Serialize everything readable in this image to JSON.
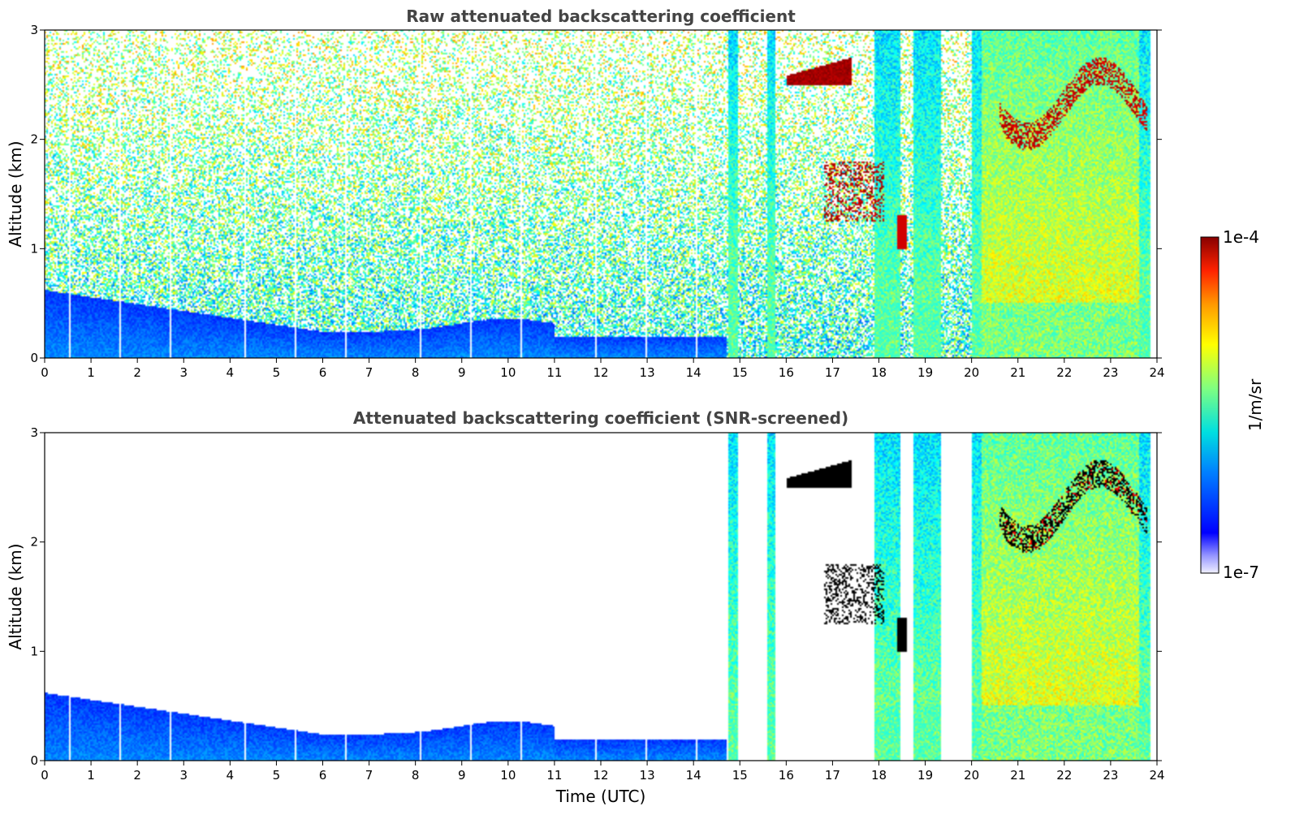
{
  "chart_data": [
    {
      "type": "heatmap",
      "title": "Raw attenuated backscattering coefficient",
      "xlabel": "",
      "ylabel": "Altitude (km)",
      "xlim": [
        0,
        24
      ],
      "ylim": [
        0,
        3
      ],
      "x_ticks": [
        "0",
        "1",
        "2",
        "3",
        "4",
        "5",
        "6",
        "7",
        "8",
        "9",
        "10",
        "11",
        "12",
        "13",
        "14",
        "15",
        "16",
        "17",
        "18",
        "19",
        "20",
        "21",
        "22",
        "23",
        "24"
      ],
      "y_ticks": [
        "0",
        "1",
        "2",
        "3"
      ],
      "screened": false,
      "features": [
        {
          "kind": "boundary-layer",
          "x": [
            0,
            14.7
          ],
          "top_km": [
            0.6,
            0.25
          ]
        },
        {
          "kind": "cloud",
          "x": [
            16.0,
            17.4
          ],
          "y_km": [
            2.55,
            2.75
          ]
        },
        {
          "kind": "cloud",
          "x": [
            16.7,
            18.0
          ],
          "y_km": [
            1.2,
            1.8
          ]
        },
        {
          "kind": "rain-column",
          "x": [
            14.8,
            15.7
          ]
        },
        {
          "kind": "rain-column",
          "x": [
            17.9,
            19.4
          ]
        },
        {
          "kind": "rain-column",
          "x": [
            20.0,
            23.8
          ]
        }
      ]
    },
    {
      "type": "heatmap",
      "title": "Attenuated backscattering coefficient (SNR-screened)",
      "xlabel": "Time (UTC)",
      "ylabel": "Altitude (km)",
      "xlim": [
        0,
        24
      ],
      "ylim": [
        0,
        3
      ],
      "x_ticks": [
        "0",
        "1",
        "2",
        "3",
        "4",
        "5",
        "6",
        "7",
        "8",
        "9",
        "10",
        "11",
        "12",
        "13",
        "14",
        "15",
        "16",
        "17",
        "18",
        "19",
        "20",
        "21",
        "22",
        "23",
        "24"
      ],
      "y_ticks": [
        "0",
        "1",
        "2",
        "3"
      ],
      "screened": true
    }
  ],
  "colorbar": {
    "min_label": "1e-7",
    "max_label": "1e-4",
    "unit_label": "1/m/sr",
    "scale": "log",
    "range": [
      1e-07,
      0.0001
    ],
    "colormap": "jet"
  },
  "colors": {
    "axis": "#000000",
    "title": "#444444",
    "no_data": "#ffffff"
  }
}
